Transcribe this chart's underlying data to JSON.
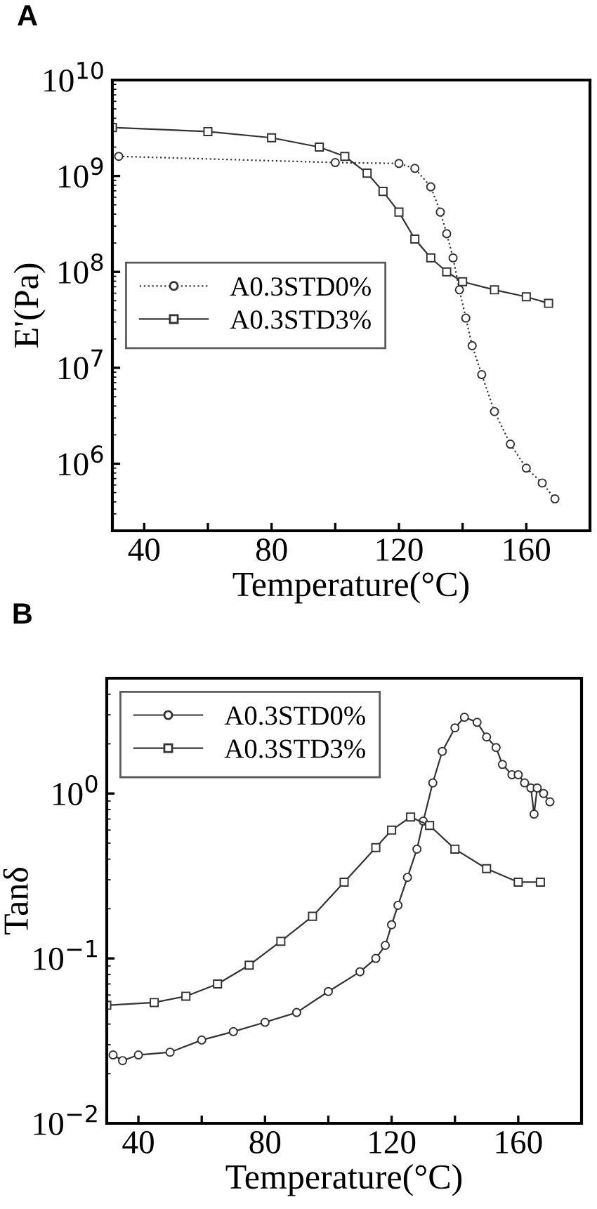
{
  "chart_data": [
    {
      "type": "line",
      "title": "A",
      "xlabel": "Temperature(°C)",
      "ylabel": "E'(Pa)",
      "log": "y",
      "xlim": [
        30,
        180
      ],
      "ylim": [
        200000,
        10000000000
      ],
      "xticks": [
        40,
        {
          "value": 60,
          "label": null
        },
        80,
        {
          "value": 100,
          "label": null
        },
        120,
        {
          "value": 140,
          "label": null
        },
        160
      ],
      "yticks": [
        {
          "value": 1000000,
          "label": "10$^{6}$"
        },
        {
          "value": 10000000,
          "label": "10$^{7}$"
        },
        {
          "value": 100000000,
          "label": "10$^{8}$"
        },
        {
          "value": 1000000000,
          "label": "10$^{9}$"
        },
        {
          "value": 10000000000,
          "label": "10$^{10}$"
        }
      ],
      "legend": "left",
      "grid": false,
      "series": [
        {
          "name": "A0.3STD0%",
          "color": "#333333",
          "marker": "circle",
          "line_style": "dotted",
          "x": [
            32,
            100,
            120,
            125,
            130,
            133,
            135,
            137,
            139,
            141,
            143,
            146,
            150,
            155,
            160,
            165,
            169
          ],
          "values": [
            1600000000,
            1380000000,
            1350000000,
            1200000000,
            770000000,
            420000000,
            250000000,
            140000000,
            65000000,
            33000000,
            17000000,
            8500000,
            3500000,
            1600000,
            900000,
            630000,
            430000
          ]
        },
        {
          "name": "A0.3STD3%",
          "color": "#333333",
          "marker": "square",
          "line_style": "solid",
          "x": [
            30,
            60,
            80,
            95,
            103,
            110,
            115,
            120,
            125,
            130,
            135,
            140,
            150,
            160,
            167
          ],
          "values": [
            3200000000,
            2900000000,
            2500000000,
            2000000000,
            1600000000,
            1070000000,
            690000000,
            420000000,
            220000000,
            140000000,
            100000000,
            79000000,
            65000000,
            55000000,
            47000000
          ]
        }
      ]
    },
    {
      "type": "line",
      "title": "B",
      "xlabel": "Temperature(°C)",
      "ylabel": "Tanδ",
      "log": "y",
      "xlim": [
        30,
        180
      ],
      "ylim": [
        0.01,
        5
      ],
      "xticks": [
        40,
        {
          "value": 60,
          "label": null
        },
        80,
        {
          "value": 100,
          "label": null
        },
        120,
        {
          "value": 140,
          "label": null
        },
        160
      ],
      "yticks": [
        {
          "value": 0.01,
          "label": "10$^{−2}$"
        },
        {
          "value": 0.1,
          "label": "10$^{−1}$"
        },
        {
          "value": 1,
          "label": "10$^{0}$"
        }
      ],
      "legend": "top left",
      "grid": false,
      "series": [
        {
          "name": "A0.3STD0%",
          "color": "#333333",
          "marker": "circle",
          "line_style": "solid",
          "x": [
            32,
            35,
            40,
            50,
            60,
            70,
            80,
            90,
            100,
            110,
            115,
            118,
            120,
            122,
            125,
            128,
            130,
            133,
            136,
            140,
            143,
            147,
            150,
            153,
            155,
            158,
            160,
            162,
            164,
            165,
            166,
            168,
            170
          ],
          "values": [
            0.026,
            0.024,
            0.026,
            0.027,
            0.032,
            0.036,
            0.041,
            0.047,
            0.063,
            0.083,
            0.1,
            0.12,
            0.16,
            0.21,
            0.31,
            0.46,
            0.68,
            1.16,
            1.8,
            2.5,
            2.9,
            2.7,
            2.2,
            1.9,
            1.5,
            1.3,
            1.3,
            1.16,
            1.08,
            0.75,
            1.08,
            1.0,
            0.89
          ]
        },
        {
          "name": "A0.3STD3%",
          "color": "#333333",
          "marker": "square",
          "line_style": "solid",
          "x": [
            30,
            45,
            55,
            65,
            75,
            85,
            95,
            105,
            115,
            120,
            126,
            132,
            140,
            150,
            160,
            167
          ],
          "values": [
            0.052,
            0.054,
            0.059,
            0.07,
            0.091,
            0.127,
            0.18,
            0.29,
            0.47,
            0.6,
            0.72,
            0.64,
            0.46,
            0.35,
            0.29,
            0.29
          ]
        }
      ]
    }
  ]
}
